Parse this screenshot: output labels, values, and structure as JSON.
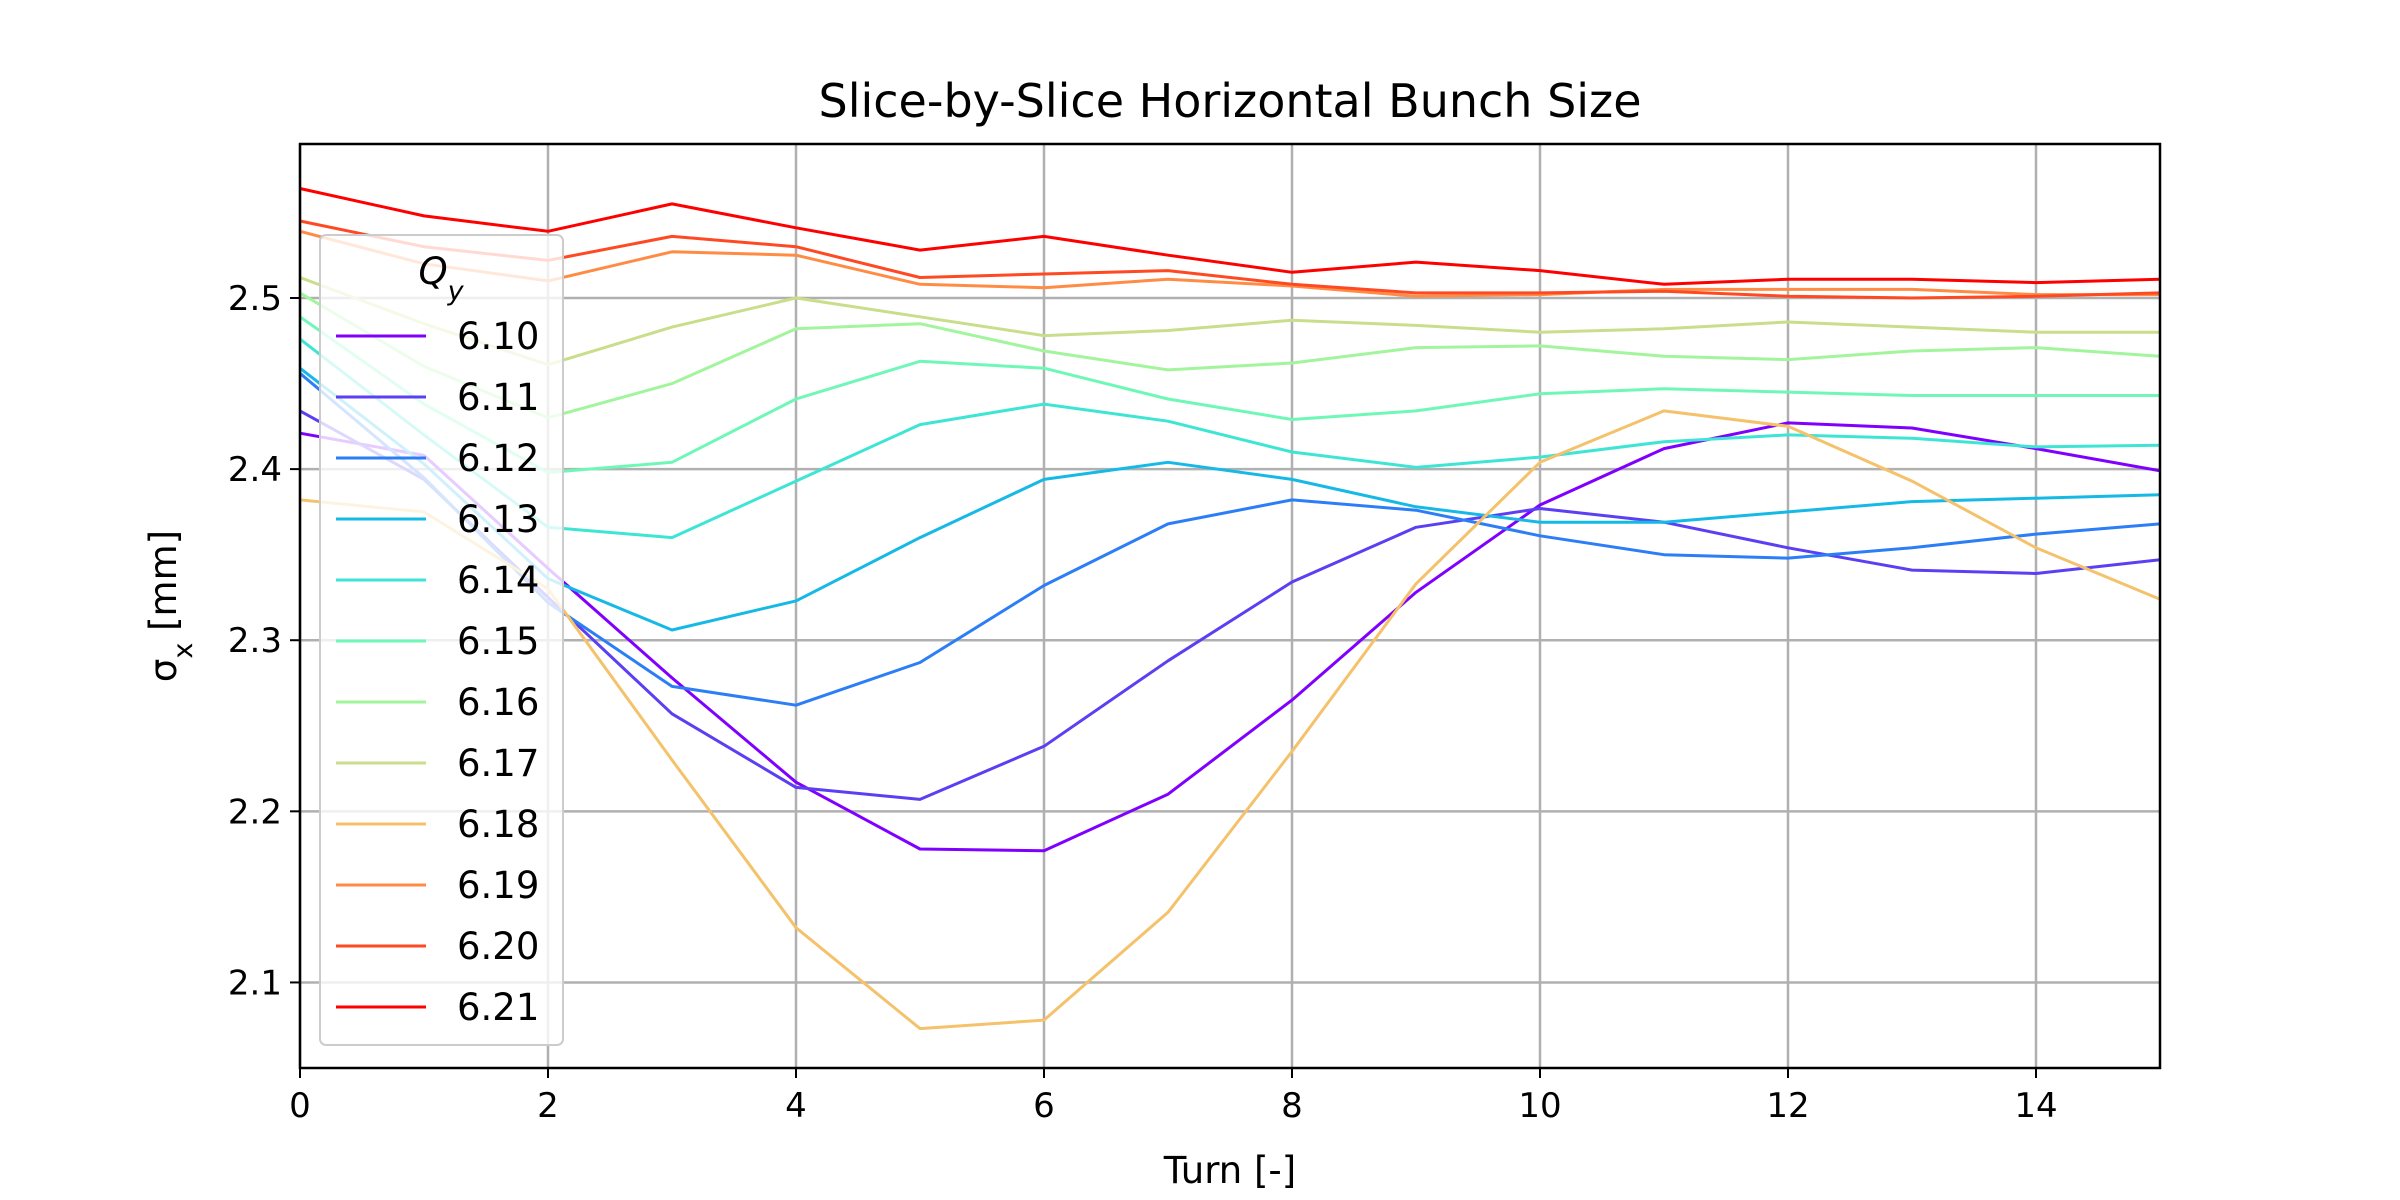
{
  "chart_data": {
    "type": "line",
    "title": "Slice-by-Slice Horizontal Bunch Size",
    "xlabel": "Turn [-]",
    "ylabel_symbol": "σ",
    "ylabel_sub": "x",
    "ylabel_unit": " [mm]",
    "xlim": [
      0,
      15
    ],
    "ylim": [
      2.05,
      2.59
    ],
    "xticks": [
      0,
      2,
      4,
      6,
      8,
      10,
      12,
      14
    ],
    "yticks": [
      2.1,
      2.2,
      2.3,
      2.4,
      2.5
    ],
    "grid": true,
    "legend": {
      "title_symbol": "Q",
      "title_sub": "y",
      "placement": "upper-left"
    },
    "x": [
      0,
      1,
      2,
      3,
      4,
      5,
      6,
      7,
      8,
      9,
      10,
      11,
      12,
      13,
      14,
      15
    ],
    "series": [
      {
        "name": "6.10",
        "color": "#8000ff",
        "values": [
          2.421,
          2.408,
          2.342,
          2.278,
          2.217,
          2.178,
          2.177,
          2.21,
          2.265,
          2.328,
          2.379,
          2.412,
          2.427,
          2.424,
          2.412,
          2.399
        ]
      },
      {
        "name": "6.11",
        "color": "#5a3ff3",
        "values": [
          2.434,
          2.394,
          2.325,
          2.257,
          2.214,
          2.207,
          2.238,
          2.288,
          2.334,
          2.366,
          2.377,
          2.369,
          2.354,
          2.341,
          2.339,
          2.347
        ]
      },
      {
        "name": "6.12",
        "color": "#2c7ef7",
        "values": [
          2.456,
          2.395,
          2.322,
          2.273,
          2.262,
          2.287,
          2.332,
          2.368,
          2.382,
          2.376,
          2.361,
          2.35,
          2.348,
          2.354,
          2.362,
          2.368
        ]
      },
      {
        "name": "6.13",
        "color": "#16b9e6",
        "values": [
          2.459,
          2.403,
          2.336,
          2.306,
          2.323,
          2.36,
          2.394,
          2.404,
          2.394,
          2.378,
          2.369,
          2.369,
          2.375,
          2.381,
          2.383,
          2.385
        ]
      },
      {
        "name": "6.14",
        "color": "#3ee5d5",
        "values": [
          2.476,
          2.42,
          2.366,
          2.36,
          2.393,
          2.426,
          2.438,
          2.428,
          2.41,
          2.401,
          2.407,
          2.416,
          2.42,
          2.418,
          2.413,
          2.414
        ]
      },
      {
        "name": "6.15",
        "color": "#6ff7b8",
        "values": [
          2.489,
          2.438,
          2.398,
          2.404,
          2.441,
          2.463,
          2.459,
          2.441,
          2.429,
          2.434,
          2.444,
          2.447,
          2.445,
          2.443,
          2.443,
          2.443
        ]
      },
      {
        "name": "6.16",
        "color": "#a2f59c",
        "values": [
          2.503,
          2.46,
          2.43,
          2.45,
          2.482,
          2.485,
          2.469,
          2.458,
          2.462,
          2.471,
          2.472,
          2.466,
          2.464,
          2.469,
          2.471,
          2.466
        ]
      },
      {
        "name": "6.17",
        "color": "#c8de8a",
        "values": [
          2.512,
          2.485,
          2.461,
          2.483,
          2.5,
          2.489,
          2.478,
          2.481,
          2.487,
          2.484,
          2.48,
          2.482,
          2.486,
          2.483,
          2.48,
          2.48
        ]
      },
      {
        "name": "6.18",
        "color": "#f5c26c",
        "values": [
          2.382,
          2.375,
          2.33,
          2.23,
          2.132,
          2.073,
          2.078,
          2.141,
          2.235,
          2.333,
          2.404,
          2.434,
          2.425,
          2.393,
          2.354,
          2.324
        ]
      },
      {
        "name": "6.19",
        "color": "#ff8b45",
        "values": [
          2.539,
          2.52,
          2.51,
          2.527,
          2.525,
          2.508,
          2.506,
          2.511,
          2.507,
          2.501,
          2.502,
          2.505,
          2.505,
          2.505,
          2.502,
          2.502
        ]
      },
      {
        "name": "6.20",
        "color": "#ff4923",
        "values": [
          2.545,
          2.53,
          2.522,
          2.536,
          2.53,
          2.512,
          2.514,
          2.516,
          2.508,
          2.503,
          2.503,
          2.504,
          2.501,
          2.5,
          2.501,
          2.503
        ]
      },
      {
        "name": "6.21",
        "color": "#ff0000",
        "values": [
          2.564,
          2.548,
          2.539,
          2.555,
          2.541,
          2.528,
          2.536,
          2.525,
          2.515,
          2.521,
          2.516,
          2.508,
          2.511,
          2.511,
          2.509,
          2.511
        ]
      }
    ]
  }
}
